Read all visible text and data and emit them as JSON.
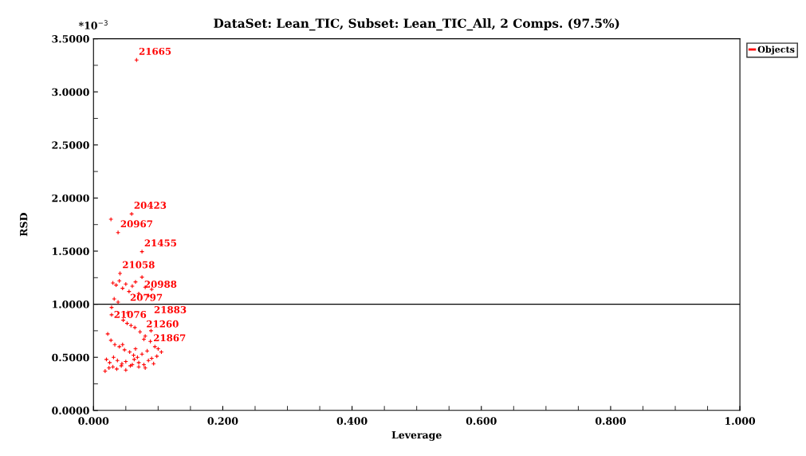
{
  "chart_data": {
    "type": "scatter",
    "title": "DataSet: Lean_TIC, Subset: Lean_TIC_All, 2 Comps. (97.5%)",
    "xlabel": "Leverage",
    "ylabel": "RSD",
    "xlim": [
      0,
      1
    ],
    "xticks": [
      {
        "value": 0,
        "label": "0.000"
      },
      {
        "value": 0.2,
        "label": "0.200"
      },
      {
        "value": 0.4,
        "label": "0.400"
      },
      {
        "value": 0.6,
        "label": "0.600"
      },
      {
        "value": 0.8,
        "label": "0.800"
      },
      {
        "value": 1,
        "label": "1.000"
      }
    ],
    "ylim": [
      0,
      3.5
    ],
    "yticks": [
      {
        "value": 0,
        "label": "0.0000"
      },
      {
        "value": 0.5,
        "label": "0.5000"
      },
      {
        "value": 1,
        "label": "1.0000"
      },
      {
        "value": 1.5,
        "label": "1.5000"
      },
      {
        "value": 2,
        "label": "2.0000"
      },
      {
        "value": 2.5,
        "label": "2.5000"
      },
      {
        "value": 3,
        "label": "3.0000"
      },
      {
        "value": 3.5,
        "label": "3.5000"
      }
    ],
    "series": [
      {
        "name": "Objects",
        "color": "#ff0000",
        "x": [
          0.0666,
          0.059,
          0.027,
          0.038,
          0.075,
          0.041,
          0.075,
          0.09,
          0.053,
          0.089,
          0.078,
          0.028,
          0.03,
          0.035,
          0.04,
          0.045,
          0.05,
          0.055,
          0.06,
          0.065,
          0.07,
          0.08,
          0.085,
          0.032,
          0.038,
          0.046,
          0.052,
          0.058,
          0.064,
          0.072,
          0.08,
          0.088,
          0.095,
          0.1,
          0.105,
          0.022,
          0.027,
          0.033,
          0.04,
          0.048,
          0.056,
          0.062,
          0.068,
          0.075,
          0.083,
          0.09,
          0.098,
          0.02,
          0.025,
          0.031,
          0.037,
          0.044,
          0.05,
          0.057,
          0.063,
          0.07,
          0.078,
          0.085,
          0.093,
          0.018,
          0.024,
          0.03,
          0.036,
          0.043,
          0.05,
          0.06,
          0.07,
          0.08,
          0.028,
          0.045,
          0.065
        ],
        "values": [
          3.3,
          1.85,
          1.8,
          1.675,
          1.495,
          1.29,
          1.255,
          1.14,
          0.92,
          0.75,
          0.67,
          0.97,
          1.2,
          1.18,
          1.22,
          1.15,
          1.19,
          1.12,
          1.17,
          1.21,
          1.1,
          1.16,
          1.08,
          1.05,
          1.02,
          0.85,
          0.82,
          0.8,
          0.78,
          0.74,
          0.7,
          0.65,
          0.6,
          0.58,
          0.55,
          0.72,
          0.66,
          0.62,
          0.6,
          0.57,
          0.55,
          0.52,
          0.5,
          0.53,
          0.56,
          0.49,
          0.51,
          0.48,
          0.45,
          0.5,
          0.47,
          0.44,
          0.46,
          0.42,
          0.48,
          0.45,
          0.43,
          0.47,
          0.44,
          0.37,
          0.4,
          0.41,
          0.39,
          0.42,
          0.38,
          0.43,
          0.41,
          0.4,
          0.9,
          0.62,
          0.58
        ]
      }
    ],
    "marker": "cross",
    "legend": "top right",
    "ref_lines": [
      {
        "axis": "y",
        "value": 1.0,
        "color": "#000000"
      }
    ],
    "annotations": [
      "*10$^{−3}$",
      {
        "text": "21665",
        "x": 0.0666,
        "y": 3.3
      },
      {
        "text": "20423",
        "x": 0.059,
        "y": 1.85
      },
      {
        "text": "20967",
        "x": 0.038,
        "y": 1.675
      },
      {
        "text": "21455",
        "x": 0.075,
        "y": 1.495
      },
      {
        "text": "21058",
        "x": 0.041,
        "y": 1.29
      },
      {
        "text": "20988",
        "x": 0.075,
        "y": 1.255
      },
      {
        "text": "21883",
        "x": 0.09,
        "y": 1.14
      },
      {
        "text": "20797",
        "x": 0.053,
        "y": 0.92
      },
      {
        "text": "21867",
        "x": 0.089,
        "y": 0.75
      },
      {
        "text": "21260",
        "x": 0.078,
        "y": 0.67
      },
      {
        "text": "21076",
        "x": 0.028,
        "y": 0.97
      }
    ]
  }
}
